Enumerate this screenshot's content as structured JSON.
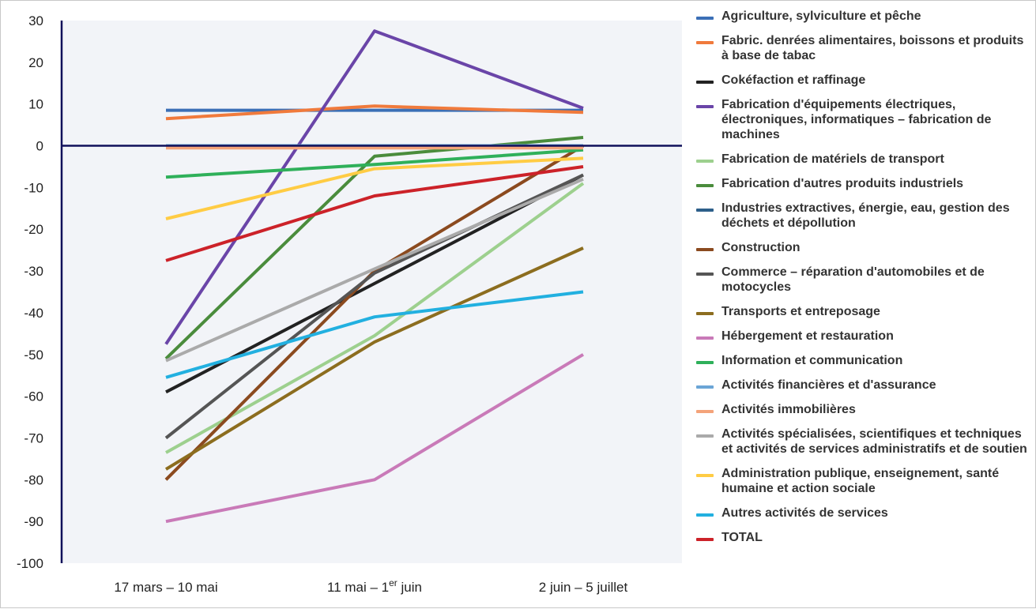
{
  "chart_data": {
    "type": "line",
    "categories": [
      "17 mars – 10 mai",
      "11 mai – 1",
      "2 juin – 5 juillet"
    ],
    "category_sup": [
      "",
      "er",
      ""
    ],
    "category_suffix": [
      "",
      " juin",
      ""
    ],
    "ylim": [
      -100,
      30
    ],
    "yticks": [
      30,
      20,
      10,
      0,
      -10,
      -20,
      -30,
      -40,
      -50,
      -60,
      -70,
      -80,
      -90,
      -100
    ],
    "grid": false,
    "legend_position": "right",
    "series": [
      {
        "name": "Agriculture, sylviculture et pêche",
        "color": "#3b6fb6",
        "values": [
          8.5,
          8.5,
          8.5
        ]
      },
      {
        "name": "Fabric. denrées alimentaires, boissons et produits à base de tabac",
        "color": "#f07a3c",
        "values": [
          6.5,
          9.5,
          8
        ]
      },
      {
        "name": "Cokéfaction et raffinage",
        "color": "#222222",
        "values": [
          -59,
          -33,
          -7
        ]
      },
      {
        "name": "Fabrication d'équipements électriques, électroniques, informatiques – fabrication de machines",
        "color": "#6a45a8",
        "values": [
          -47.5,
          27.5,
          9
        ]
      },
      {
        "name": "Fabrication de matériels de transport",
        "color": "#9dd08e",
        "values": [
          -73.5,
          -45.5,
          -9
        ]
      },
      {
        "name": "Fabrication d'autres produits industriels",
        "color": "#4a8c3c",
        "values": [
          -51,
          -2.5,
          2
        ]
      },
      {
        "name": "Industries extractives, énergie, eau, gestion des déchets et dépollution",
        "color": "#2d5f8a",
        "values": [
          0,
          0,
          0
        ]
      },
      {
        "name": "Construction",
        "color": "#8b4a1f",
        "values": [
          -80,
          -30,
          0
        ]
      },
      {
        "name": "Commerce – réparation d'automobiles et de motocycles",
        "color": "#555555",
        "values": [
          -70,
          -30.5,
          -7
        ]
      },
      {
        "name": "Transports et entreposage",
        "color": "#8c6d1f",
        "values": [
          -77.5,
          -47,
          -24.5
        ]
      },
      {
        "name": "Hébergement et restauration",
        "color": "#c97ab8",
        "values": [
          -90,
          -80,
          -50
        ]
      },
      {
        "name": "Information et communication",
        "color": "#2fb05a",
        "values": [
          -7.5,
          -4.5,
          -1
        ]
      },
      {
        "name": "Activités financières et d'assurance",
        "color": "#6ba5d6",
        "values": [
          0,
          0,
          0
        ]
      },
      {
        "name": "Activités immobilières",
        "color": "#f4a37a",
        "values": [
          -0.5,
          -0.5,
          -0.5
        ]
      },
      {
        "name": "Activités spécialisées, scientifiques et techniques et activités de services administratifs et de soutien",
        "color": "#aaaaaa",
        "values": [
          -51.5,
          -29.5,
          -8
        ]
      },
      {
        "name": "Administration publique, enseignement, santé humaine et action sociale",
        "color": "#ffcc44",
        "values": [
          -17.5,
          -5.5,
          -3
        ]
      },
      {
        "name": "Autres activités de services",
        "color": "#22b0e0",
        "values": [
          -55.5,
          -41,
          -35
        ]
      },
      {
        "name": "TOTAL",
        "color": "#cc2229",
        "values": [
          -27.5,
          -12,
          -5
        ]
      }
    ]
  }
}
